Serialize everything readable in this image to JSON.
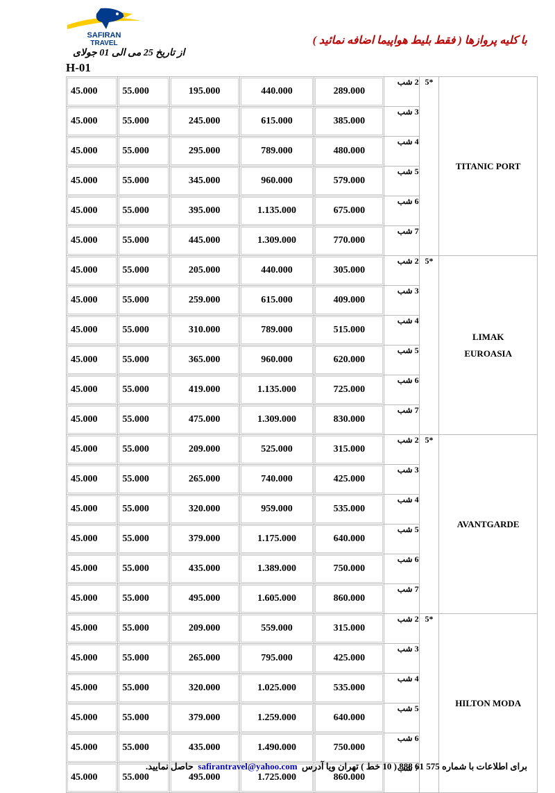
{
  "logo": {
    "bird_fill": "#003a8c",
    "beak_fill": "#ffcc00",
    "swoosh_fill": "#ffcc00",
    "text1": "SAFIRAN",
    "text2": "TRAVEL",
    "text_color": "#003a8c"
  },
  "header_red": "با کلیه پروازها ( فقط بلیط هواپیما اضافه نمائید )",
  "header_black": "از تاریخ 25 می الی 01 جولای",
  "code": "H-01",
  "star": "5*",
  "c1_const": "45.000",
  "c2_const": "55.000",
  "hotels": [
    {
      "name": "TITANIC PORT",
      "rows": [
        {
          "c3": "195.000",
          "c4": "440.000",
          "c5": "289.000",
          "n": "2 شب"
        },
        {
          "c3": "245.000",
          "c4": "615.000",
          "c5": "385.000",
          "n": "3 شب"
        },
        {
          "c3": "295.000",
          "c4": "789.000",
          "c5": "480.000",
          "n": "4 شب"
        },
        {
          "c3": "345.000",
          "c4": "960.000",
          "c5": "579.000",
          "n": "5 شب"
        },
        {
          "c3": "395.000",
          "c4": "1.135.000",
          "c5": "675.000",
          "n": "6 شب"
        },
        {
          "c3": "445.000",
          "c4": "1.309.000",
          "c5": "770.000",
          "n": "7 شب"
        }
      ]
    },
    {
      "name": "LIMAK EUROASIA",
      "rows": [
        {
          "c3": "205.000",
          "c4": "440.000",
          "c5": "305.000",
          "n": "2 شب"
        },
        {
          "c3": "259.000",
          "c4": "615.000",
          "c5": "409.000",
          "n": "3 شب"
        },
        {
          "c3": "310.000",
          "c4": "789.000",
          "c5": "515.000",
          "n": "4 شب"
        },
        {
          "c3": "365.000",
          "c4": "960.000",
          "c5": "620.000",
          "n": "5 شب"
        },
        {
          "c3": "419.000",
          "c4": "1.135.000",
          "c5": "725.000",
          "n": "6 شب"
        },
        {
          "c3": "475.000",
          "c4": "1.309.000",
          "c5": "830.000",
          "n": "7 شب"
        }
      ]
    },
    {
      "name": "AVANTGARDE",
      "rows": [
        {
          "c3": "209.000",
          "c4": "525.000",
          "c5": "315.000",
          "n": "2 شب"
        },
        {
          "c3": "265.000",
          "c4": "740.000",
          "c5": "425.000",
          "n": "3 شب"
        },
        {
          "c3": "320.000",
          "c4": "959.000",
          "c5": "535.000",
          "n": "4 شب"
        },
        {
          "c3": "379.000",
          "c4": "1.175.000",
          "c5": "640.000",
          "n": "5 شب"
        },
        {
          "c3": "435.000",
          "c4": "1.389.000",
          "c5": "750.000",
          "n": "6 شب"
        },
        {
          "c3": "495.000",
          "c4": "1.605.000",
          "c5": "860.000",
          "n": "7 شب"
        }
      ]
    },
    {
      "name": "HILTON MODA",
      "rows": [
        {
          "c3": "209.000",
          "c4": "559.000",
          "c5": "315.000",
          "n": "2 شب"
        },
        {
          "c3": "265.000",
          "c4": "795.000",
          "c5": "425.000",
          "n": "3 شب"
        },
        {
          "c3": "320.000",
          "c4": "1.025.000",
          "c5": "535.000",
          "n": "4 شب"
        },
        {
          "c3": "379.000",
          "c4": "1.259.000",
          "c5": "640.000",
          "n": "5 شب"
        },
        {
          "c3": "435.000",
          "c4": "1.490.000",
          "c5": "750.000",
          "n": "6 شب"
        },
        {
          "c3": "495.000",
          "c4": "1.725.000",
          "c5": "860.000",
          "n": "7 شب"
        }
      ]
    }
  ],
  "footer": {
    "pre": "برای اطلاعات با شماره 575 61 888 ( 10 خط ) تهران ویا آدرس",
    "email": "safirantravel@yahoo.com",
    "post": "حاصل نمایید."
  }
}
